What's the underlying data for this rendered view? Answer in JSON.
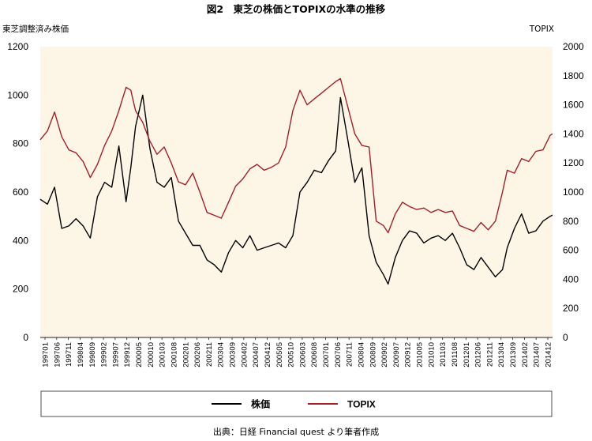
{
  "chart_data": {
    "type": "line",
    "title": "図2　東芝の株価とTOPIXの水準の推移",
    "ylabel_left": "東芝調整済み株価",
    "ylabel_right": "TOPIX",
    "ylim_left": [
      0,
      1200
    ],
    "ylim_right": [
      0,
      2000
    ],
    "yticks_left": [
      "0",
      "200",
      "400",
      "600",
      "800",
      "1000",
      "1200"
    ],
    "yticks_right": [
      "0",
      "200",
      "400",
      "600",
      "800",
      "1000",
      "1200",
      "1400",
      "1600",
      "1800",
      "2000"
    ],
    "x_tick_labels": [
      "199701",
      "199706",
      "199711",
      "199804",
      "199809",
      "199902",
      "199907",
      "199912",
      "200005",
      "200010",
      "200103",
      "200108",
      "200201",
      "200206",
      "200211",
      "200304",
      "200309",
      "200402",
      "200407",
      "200412",
      "200505",
      "200510",
      "200603",
      "200608",
      "200701",
      "200706",
      "200711",
      "200804",
      "200809",
      "200902",
      "200907",
      "200912",
      "201005",
      "201010",
      "201103",
      "201108",
      "201201",
      "201206",
      "201211",
      "201304",
      "201309",
      "201402",
      "201407",
      "201412"
    ],
    "background": "#fdf6e6",
    "grid": false,
    "legend_position": "bottom",
    "series": [
      {
        "name": "株価",
        "color": "#000000",
        "axis": "left",
        "x": [
          "1997-01",
          "1997-04",
          "1997-07",
          "1997-10",
          "1998-01",
          "1998-04",
          "1998-07",
          "1998-10",
          "1999-01",
          "1999-04",
          "1999-07",
          "1999-10",
          "2000-01",
          "2000-03",
          "2000-05",
          "2000-08",
          "2000-11",
          "2001-02",
          "2001-05",
          "2001-08",
          "2001-11",
          "2002-02",
          "2002-05",
          "2002-08",
          "2002-11",
          "2003-02",
          "2003-05",
          "2003-08",
          "2003-11",
          "2004-02",
          "2004-05",
          "2004-08",
          "2004-11",
          "2005-02",
          "2005-05",
          "2005-08",
          "2005-11",
          "2006-02",
          "2006-05",
          "2006-08",
          "2006-11",
          "2007-02",
          "2007-05",
          "2007-07",
          "2007-10",
          "2008-01",
          "2008-04",
          "2008-07",
          "2008-10",
          "2009-01",
          "2009-03",
          "2009-06",
          "2009-09",
          "2009-12",
          "2010-03",
          "2010-06",
          "2010-09",
          "2010-12",
          "2011-03",
          "2011-06",
          "2011-09",
          "2011-12",
          "2012-03",
          "2012-06",
          "2012-09",
          "2012-12",
          "2013-03",
          "2013-05",
          "2013-08",
          "2013-11",
          "2014-02",
          "2014-05",
          "2014-08",
          "2014-11",
          "2014-12"
        ],
        "values": [
          570,
          550,
          620,
          450,
          460,
          490,
          460,
          410,
          580,
          640,
          620,
          790,
          560,
          700,
          870,
          1000,
          780,
          640,
          620,
          660,
          480,
          430,
          380,
          380,
          320,
          300,
          270,
          350,
          400,
          370,
          420,
          360,
          370,
          380,
          390,
          370,
          420,
          600,
          640,
          690,
          680,
          730,
          770,
          990,
          820,
          640,
          700,
          420,
          310,
          260,
          220,
          330,
          400,
          440,
          430,
          390,
          410,
          420,
          400,
          430,
          370,
          300,
          280,
          330,
          290,
          250,
          280,
          370,
          450,
          510,
          430,
          440,
          480,
          500,
          505
        ]
      },
      {
        "name": "TOPIX",
        "color": "#a31f2a",
        "axis": "right",
        "x": [
          "1997-01",
          "1997-04",
          "1997-07",
          "1997-10",
          "1998-01",
          "1998-04",
          "1998-07",
          "1998-10",
          "1999-01",
          "1999-04",
          "1999-07",
          "1999-10",
          "2000-01",
          "2000-03",
          "2000-05",
          "2000-08",
          "2000-11",
          "2001-02",
          "2001-05",
          "2001-08",
          "2001-11",
          "2002-02",
          "2002-05",
          "2002-08",
          "2002-11",
          "2003-02",
          "2003-05",
          "2003-08",
          "2003-11",
          "2004-02",
          "2004-05",
          "2004-08",
          "2004-11",
          "2005-02",
          "2005-05",
          "2005-08",
          "2005-11",
          "2006-02",
          "2006-05",
          "2006-08",
          "2006-11",
          "2007-02",
          "2007-05",
          "2007-07",
          "2007-10",
          "2008-01",
          "2008-04",
          "2008-07",
          "2008-10",
          "2009-01",
          "2009-03",
          "2009-06",
          "2009-09",
          "2009-12",
          "2010-03",
          "2010-06",
          "2010-09",
          "2010-12",
          "2011-03",
          "2011-06",
          "2011-09",
          "2011-12",
          "2012-03",
          "2012-06",
          "2012-09",
          "2012-12",
          "2013-03",
          "2013-05",
          "2013-08",
          "2013-11",
          "2014-02",
          "2014-05",
          "2014-08",
          "2014-11",
          "2014-12"
        ],
        "values": [
          1360,
          1420,
          1550,
          1380,
          1290,
          1270,
          1210,
          1100,
          1190,
          1320,
          1420,
          1560,
          1720,
          1700,
          1560,
          1480,
          1350,
          1260,
          1310,
          1200,
          1070,
          1050,
          1130,
          1000,
          860,
          840,
          820,
          930,
          1040,
          1090,
          1160,
          1190,
          1150,
          1170,
          1200,
          1310,
          1560,
          1700,
          1600,
          1640,
          1680,
          1720,
          1760,
          1780,
          1590,
          1400,
          1320,
          1310,
          800,
          770,
          720,
          850,
          930,
          900,
          880,
          890,
          860,
          880,
          860,
          870,
          770,
          750,
          730,
          790,
          740,
          800,
          1000,
          1150,
          1130,
          1230,
          1210,
          1280,
          1290,
          1390,
          1400
        ]
      }
    ]
  },
  "legend": {
    "stock_label": "株価",
    "topix_label": "TOPIX"
  },
  "source_note": "出典：日経 Financial quest より筆者作成"
}
